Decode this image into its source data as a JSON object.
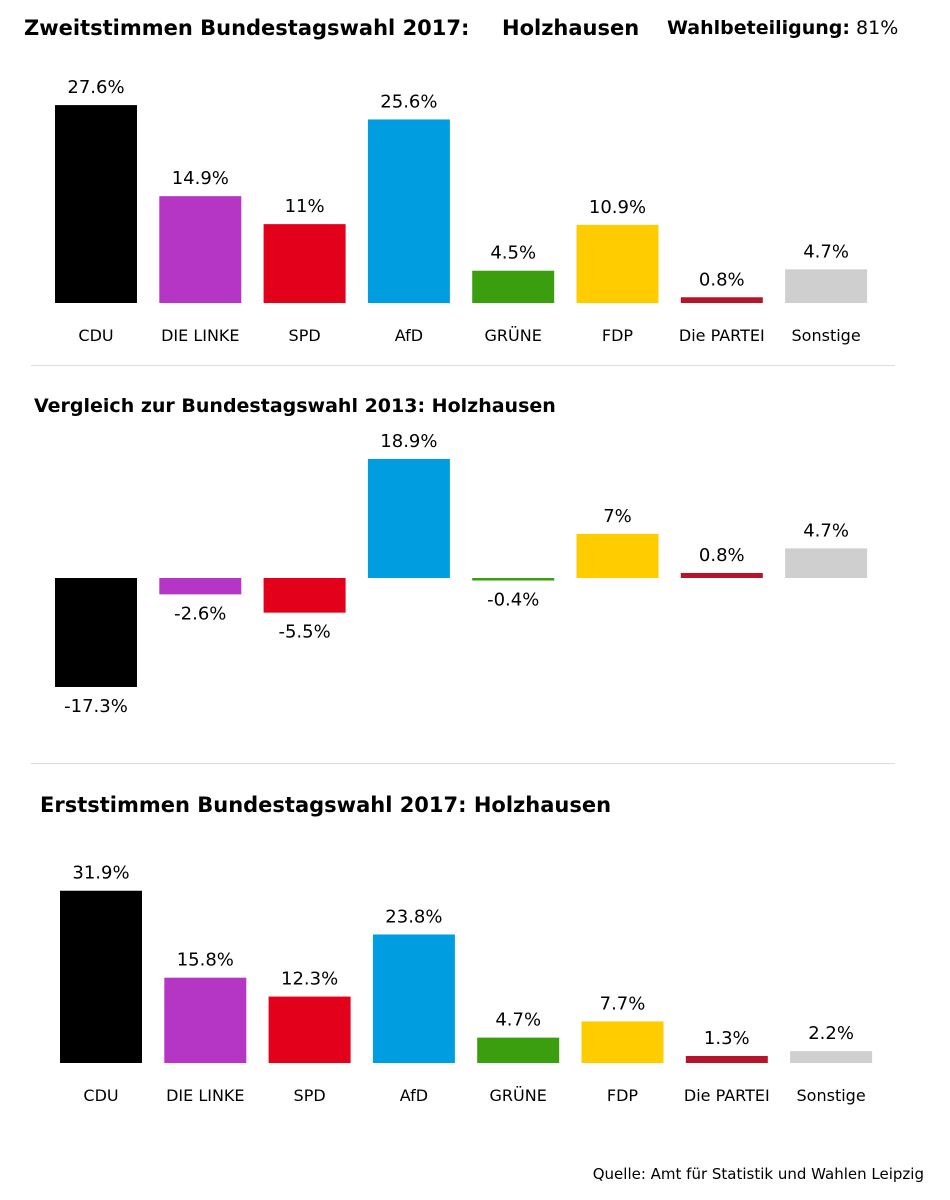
{
  "header": {
    "title": "Zweitstimmen Bundestagswahl 2017:",
    "place": "Holzhausen",
    "turnout_label": "Wahlbeteiligung:",
    "turnout_value": "81%"
  },
  "section2": {
    "title": "Vergleich zur Bundestagswahl 2013: Holzhausen"
  },
  "section3": {
    "title": "Erststimmen Bundestagswahl 2017: Holzhausen"
  },
  "source": "Quelle: Amt für Statistik und Wahlen Leipzig",
  "colors": {
    "CDU": "#000000",
    "DIE LINKE": "#b535c5",
    "SPD": "#e2001a",
    "AfD": "#009ee0",
    "GRÜNE": "#3a9e0e",
    "FDP": "#ffcc00",
    "Die PARTEI": "#b5152b",
    "Sonstige": "#cfcfcf"
  },
  "chart_data": [
    {
      "type": "bar",
      "title": "Zweitstimmen Bundestagswahl 2017: Holzhausen",
      "categories": [
        "CDU",
        "DIE LINKE",
        "SPD",
        "AfD",
        "GRÜNE",
        "FDP",
        "Die PARTEI",
        "Sonstige"
      ],
      "values": [
        27.6,
        14.9,
        11,
        25.6,
        4.5,
        10.9,
        0.8,
        4.7
      ],
      "labels": [
        "27.6%",
        "14.9%",
        "11%",
        "25.6%",
        "4.5%",
        "10.9%",
        "0.8%",
        "4.7%"
      ],
      "show_categories": true,
      "grid": false
    },
    {
      "type": "bar",
      "title": "Vergleich zur Bundestagswahl 2013: Holzhausen",
      "categories": [
        "CDU",
        "DIE LINKE",
        "SPD",
        "AfD",
        "GRÜNE",
        "FDP",
        "Die PARTEI",
        "Sonstige"
      ],
      "values": [
        -17.3,
        -2.6,
        -5.5,
        18.9,
        -0.4,
        7,
        0.8,
        4.7
      ],
      "labels": [
        "-17.3%",
        "-2.6%",
        "-5.5%",
        "18.9%",
        "-0.4%",
        "7%",
        "0.8%",
        "4.7%"
      ],
      "show_categories": false,
      "grid": false
    },
    {
      "type": "bar",
      "title": "Erststimmen Bundestagswahl 2017: Holzhausen",
      "categories": [
        "CDU",
        "DIE LINKE",
        "SPD",
        "AfD",
        "GRÜNE",
        "FDP",
        "Die PARTEI",
        "Sonstige"
      ],
      "values": [
        31.9,
        15.8,
        12.3,
        23.8,
        4.7,
        7.7,
        1.3,
        2.2
      ],
      "labels": [
        "31.9%",
        "15.8%",
        "12.3%",
        "23.8%",
        "4.7%",
        "7.7%",
        "1.3%",
        "2.2%"
      ],
      "show_categories": true,
      "grid": false
    }
  ]
}
